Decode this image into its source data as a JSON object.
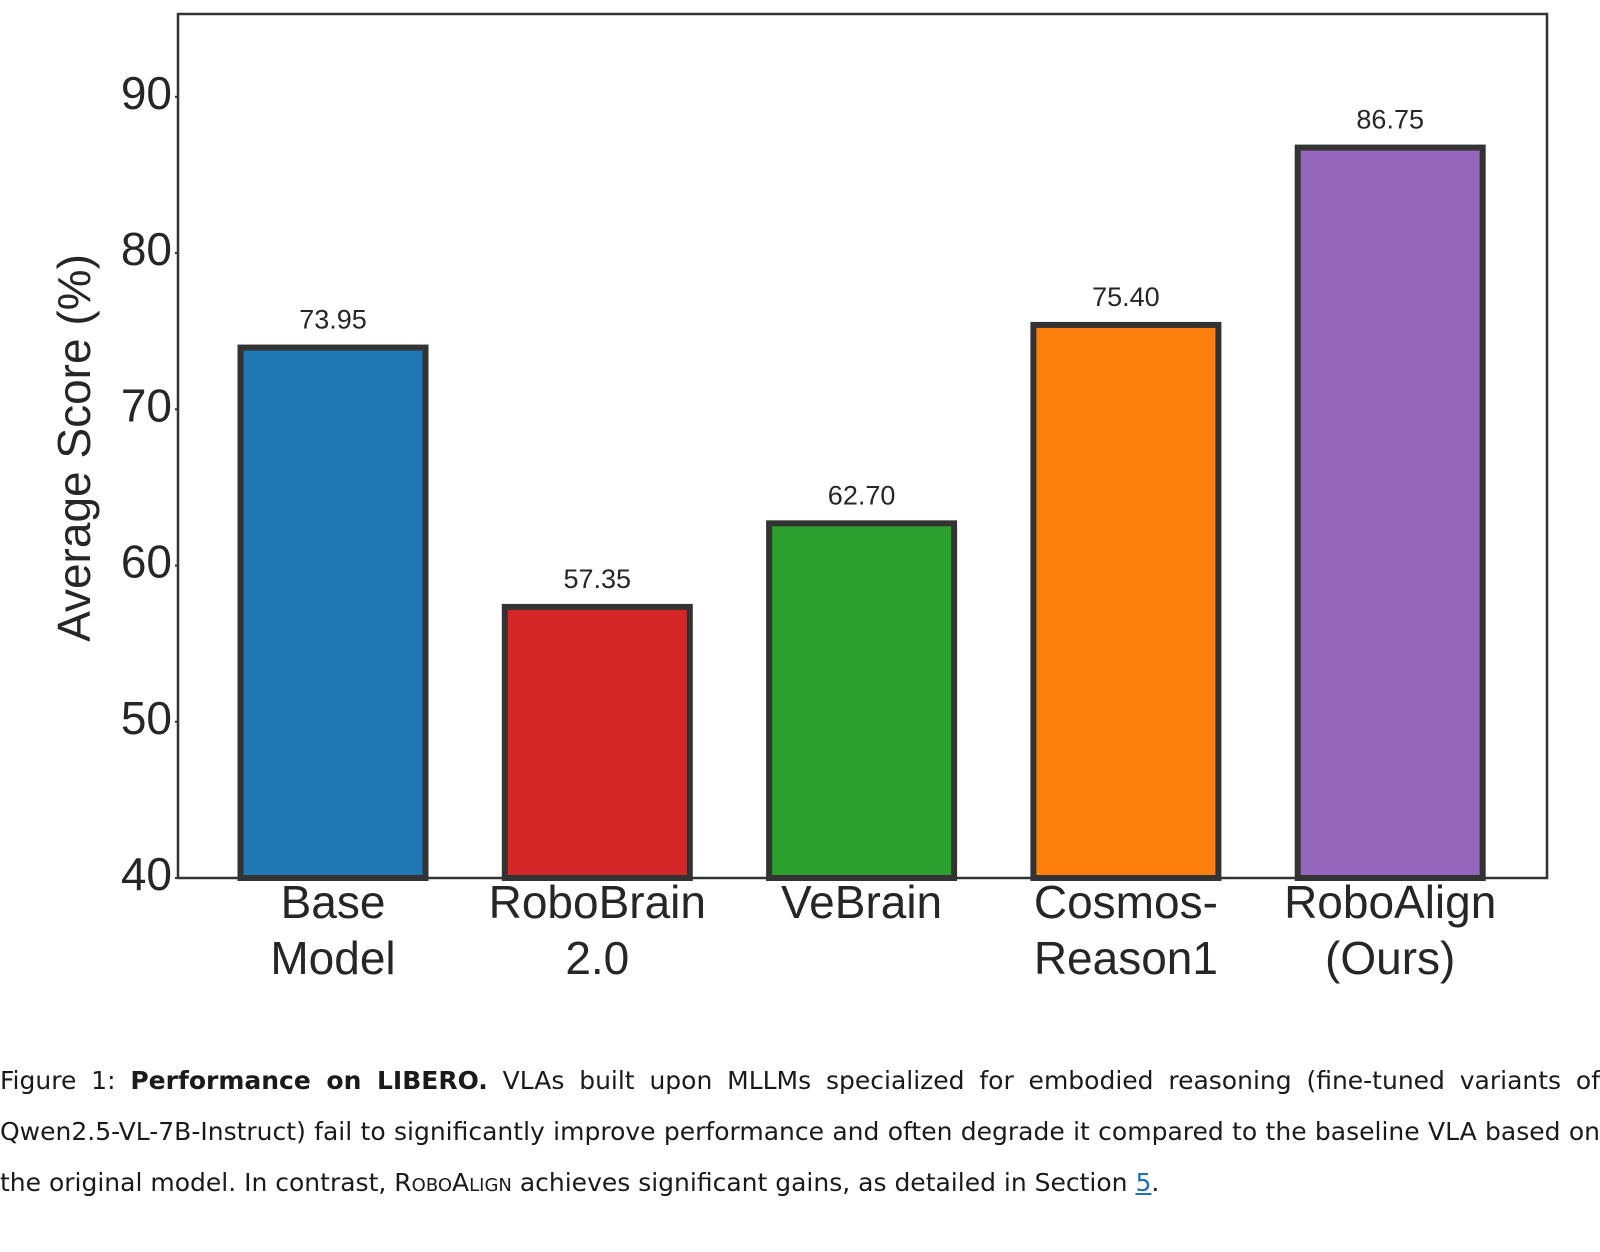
{
  "chart_data": {
    "type": "bar",
    "ylabel": "Average Score (%)",
    "categories": [
      [
        "Base",
        "Model"
      ],
      [
        "RoboBrain",
        "2.0"
      ],
      [
        "VeBrain"
      ],
      [
        "Cosmos-",
        "Reason1"
      ],
      [
        "RoboAlign",
        "(Ours)"
      ]
    ],
    "values": [
      73.95,
      57.35,
      62.7,
      75.4,
      86.75
    ],
    "value_labels": [
      "73.95",
      "57.35",
      "62.70",
      "75.40",
      "86.75"
    ],
    "colors": [
      "#1f77b4",
      "#d62728",
      "#2ca02c",
      "#ff7f0e",
      "#9467bd"
    ],
    "edgecolor": "#333333",
    "ylim": [
      40,
      95.3
    ],
    "yticks": [
      40,
      50,
      60,
      70,
      80,
      90
    ],
    "grid": false
  },
  "caption": {
    "label": "Figure 1:",
    "bold": "Performance on LIBERO.",
    "text1": "VLAs built upon MLLMs specialized for embodied reasoning (fine-tuned variants of Qwen2.5-VL-7B-Instruct) fail to significantly improve performance and often degrade it compared to the baseline VLA based on the original model. In contrast,",
    "name": "RoboAlign",
    "text2": "achieves significant gains, as detailed in Section",
    "link": "5",
    "end": "."
  }
}
